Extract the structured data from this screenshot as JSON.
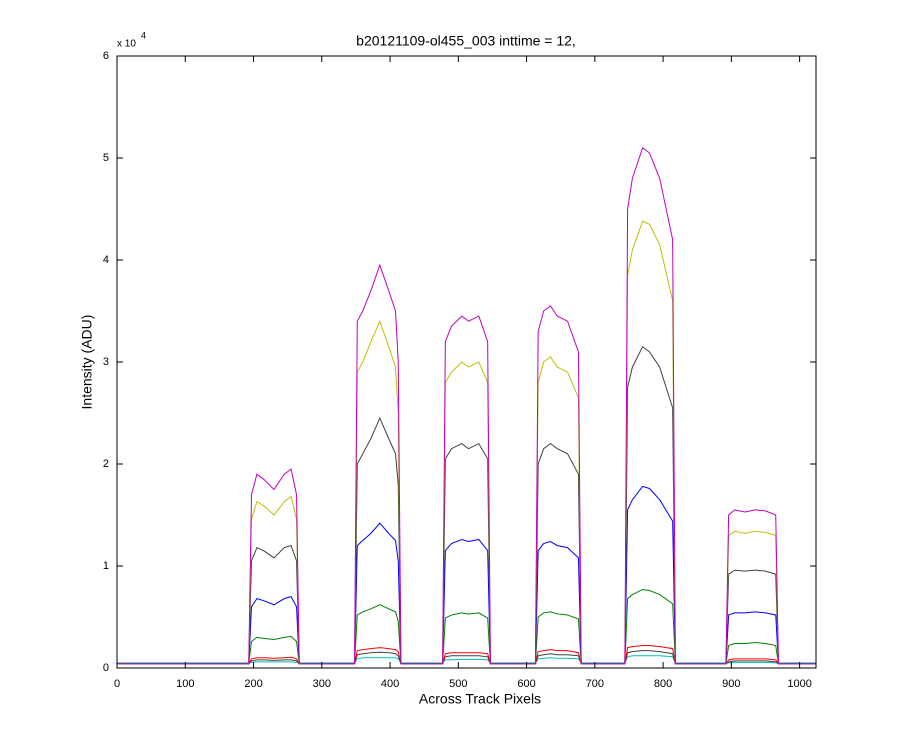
{
  "chart_data": {
    "type": "line",
    "title": "b20121109-ol455_003 inttime = 12,",
    "xlabel": "Across Track Pixels",
    "ylabel": "Intensity (ADU)",
    "exponent_label": "x 10",
    "exponent": "4",
    "xlim": [
      0,
      1024
    ],
    "xticks": [
      0,
      100,
      200,
      300,
      400,
      500,
      600,
      700,
      800,
      900,
      1000
    ],
    "ylim": [
      0,
      60000
    ],
    "yticks": [
      0,
      {
        "value": 10000,
        "label": "1"
      },
      {
        "value": 20000,
        "label": "2"
      },
      {
        "value": 30000,
        "label": "3"
      },
      {
        "value": 40000,
        "label": "4"
      },
      {
        "value": 50000,
        "label": "5"
      },
      {
        "value": 60000,
        "label": "6"
      }
    ],
    "x": [
      0,
      193,
      197,
      205,
      215,
      230,
      245,
      255,
      263,
      267,
      348,
      352,
      360,
      372,
      385,
      398,
      408,
      412,
      416,
      477,
      481,
      490,
      505,
      515,
      530,
      543,
      547,
      613,
      617,
      625,
      635,
      645,
      660,
      676,
      680,
      744,
      748,
      755,
      770,
      780,
      795,
      814,
      818,
      892,
      896,
      905,
      920,
      935,
      950,
      965,
      969,
      1024
    ],
    "series": [
      {
        "color": "#00bfbf",
        "values": [
          500,
          500,
          550,
          600,
          600,
          600,
          600,
          600,
          550,
          500,
          500,
          900,
          1000,
          1000,
          1000,
          1000,
          1000,
          900,
          500,
          500,
          800,
          800,
          850,
          850,
          850,
          800,
          500,
          500,
          900,
          950,
          1000,
          950,
          950,
          900,
          500,
          500,
          1100,
          1200,
          1200,
          1200,
          1200,
          1100,
          500,
          500,
          500,
          550,
          550,
          550,
          550,
          500,
          500,
          500
        ]
      },
      {
        "color": "#404040",
        "values": [
          400,
          400,
          700,
          800,
          800,
          750,
          800,
          800,
          700,
          400,
          400,
          1300,
          1400,
          1500,
          1550,
          1500,
          1400,
          1200,
          400,
          400,
          1100,
          1200,
          1200,
          1200,
          1200,
          1100,
          400,
          400,
          1200,
          1300,
          1400,
          1300,
          1300,
          1200,
          400,
          400,
          1500,
          1600,
          1700,
          1700,
          1600,
          1400,
          400,
          400,
          600,
          700,
          700,
          700,
          700,
          600,
          400,
          400
        ]
      },
      {
        "color": "#ff0000",
        "values": [
          400,
          400,
          900,
          1000,
          1000,
          950,
          1000,
          1050,
          900,
          400,
          400,
          1700,
          1800,
          1900,
          2000,
          1900,
          1800,
          1600,
          400,
          400,
          1400,
          1500,
          1500,
          1500,
          1500,
          1400,
          400,
          400,
          1600,
          1700,
          1800,
          1700,
          1700,
          1500,
          400,
          400,
          2000,
          2100,
          2200,
          2200,
          2100,
          1900,
          400,
          400,
          800,
          900,
          900,
          900,
          900,
          800,
          400,
          400
        ]
      },
      {
        "color": "#008000",
        "values": [
          400,
          400,
          2600,
          3000,
          2900,
          2800,
          3000,
          3100,
          2600,
          400,
          400,
          5200,
          5500,
          5800,
          6200,
          5800,
          5500,
          4600,
          400,
          400,
          4900,
          5200,
          5400,
          5300,
          5400,
          4900,
          400,
          400,
          5000,
          5400,
          5500,
          5300,
          5200,
          4800,
          400,
          400,
          6800,
          7200,
          7700,
          7600,
          7200,
          6300,
          400,
          400,
          2200,
          2400,
          2400,
          2500,
          2400,
          2200,
          400,
          400
        ]
      },
      {
        "color": "#0000ff",
        "values": [
          400,
          400,
          6000,
          6800,
          6600,
          6200,
          6800,
          7000,
          6000,
          400,
          400,
          12000,
          12500,
          13200,
          14200,
          13200,
          12500,
          10500,
          400,
          400,
          11500,
          12200,
          12600,
          12400,
          12600,
          11500,
          400,
          400,
          11500,
          12200,
          12400,
          12000,
          11800,
          10800,
          400,
          400,
          15500,
          16500,
          17800,
          17600,
          16500,
          14400,
          400,
          400,
          5200,
          5400,
          5400,
          5500,
          5400,
          5200,
          400,
          400
        ]
      },
      {
        "color": "#404040",
        "values": [
          400,
          400,
          10500,
          11800,
          11500,
          10800,
          11800,
          12000,
          10500,
          400,
          400,
          20000,
          21000,
          22500,
          24500,
          22500,
          21000,
          18000,
          400,
          400,
          20500,
          21500,
          22000,
          21500,
          22000,
          20500,
          400,
          400,
          20000,
          21500,
          22000,
          21500,
          21000,
          19000,
          400,
          400,
          27500,
          29500,
          31500,
          31000,
          29500,
          25500,
          400,
          400,
          9200,
          9600,
          9500,
          9600,
          9500,
          9200,
          400,
          400
        ]
      },
      {
        "color": "#bfbf00",
        "values": [
          400,
          400,
          14600,
          16300,
          15900,
          15000,
          16300,
          16800,
          14600,
          400,
          400,
          29000,
          30000,
          32000,
          34000,
          31500,
          29500,
          25000,
          400,
          400,
          28000,
          29000,
          30000,
          29500,
          30000,
          28000,
          400,
          400,
          28000,
          30000,
          30500,
          29500,
          29000,
          26500,
          400,
          400,
          38500,
          41000,
          43800,
          43500,
          41500,
          36000,
          400,
          400,
          13000,
          13400,
          13200,
          13400,
          13300,
          13000,
          400,
          400
        ]
      },
      {
        "color": "#bf00bf",
        "values": [
          400,
          400,
          17000,
          19000,
          18500,
          17500,
          19000,
          19500,
          17000,
          400,
          400,
          34000,
          35000,
          37000,
          39500,
          37000,
          35000,
          30000,
          400,
          400,
          32000,
          33500,
          34500,
          34000,
          34500,
          32000,
          400,
          400,
          33000,
          35000,
          35500,
          34500,
          34000,
          31000,
          400,
          400,
          45000,
          48000,
          51000,
          50500,
          48000,
          42000,
          400,
          400,
          15000,
          15500,
          15300,
          15500,
          15400,
          15000,
          400,
          400
        ]
      }
    ]
  }
}
